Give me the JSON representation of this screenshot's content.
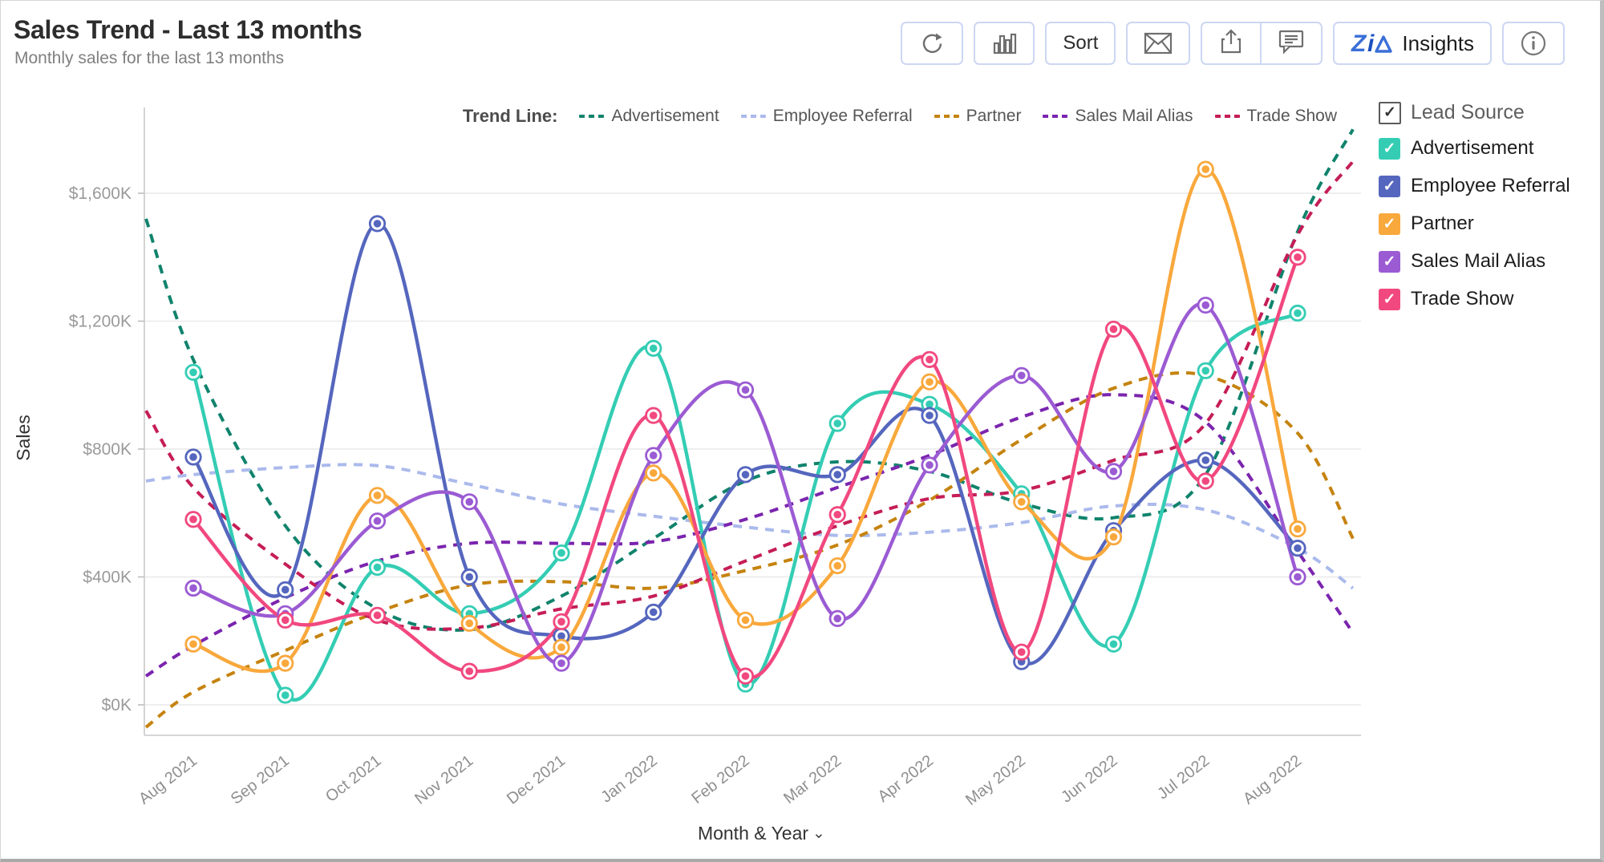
{
  "header": {
    "title": "Sales Trend - Last 13 months",
    "subtitle": "Monthly sales for the last 13 months"
  },
  "toolbar": {
    "sort_label": "Sort",
    "zia_label": "Zia",
    "insights_label": "Insights",
    "icons": [
      "refresh-icon",
      "column-chart-icon",
      "mail-icon",
      "share-icon",
      "comment-icon",
      "zia-logo-icon",
      "info-icon"
    ]
  },
  "trend_legend": {
    "label": "Trend Line:",
    "items": [
      {
        "name": "Advertisement",
        "color": "#10836C"
      },
      {
        "name": "Employee Referral",
        "color": "#ABBAEC"
      },
      {
        "name": "Partner",
        "color": "#C5830F"
      },
      {
        "name": "Sales Mail Alias",
        "color": "#7B24AE"
      },
      {
        "name": "Trade Show",
        "color": "#C51D57"
      }
    ]
  },
  "lead_source_legend": {
    "title": "Lead Source",
    "checked": true,
    "items": [
      {
        "label": "Advertisement",
        "color": "#34CDB4",
        "checked": true
      },
      {
        "label": "Employee Referral",
        "color": "#5566BE",
        "checked": true
      },
      {
        "label": "Partner",
        "color": "#F9A83C",
        "checked": true
      },
      {
        "label": "Sales Mail Alias",
        "color": "#9B5BD3",
        "checked": true
      },
      {
        "label": "Trade Show",
        "color": "#F1487F",
        "checked": true
      }
    ]
  },
  "chart_data": {
    "type": "line",
    "title": "Sales Trend - Last 13 months",
    "xlabel": "Month & Year",
    "ylabel": "Sales",
    "unit": "$K",
    "ylim": [
      0,
      1600
    ],
    "ytick_step": 400,
    "ytick_labels": [
      "$0K",
      "$400K",
      "$800K",
      "$1,200K",
      "$1,600K"
    ],
    "grid": true,
    "legend_position": "right",
    "categories": [
      "Aug 2021",
      "Sep 2021",
      "Oct 2021",
      "Nov 2021",
      "Dec 2021",
      "Jan 2022",
      "Feb 2022",
      "Mar 2022",
      "Apr 2022",
      "May 2022",
      "Jun 2022",
      "Jul 2022",
      "Aug 2022"
    ],
    "series": [
      {
        "name": "Advertisement",
        "color": "#34CDB4",
        "values": [
          1040,
          30,
          430,
          285,
          475,
          1115,
          65,
          880,
          940,
          660,
          190,
          1045,
          1225
        ]
      },
      {
        "name": "Employee Referral",
        "color": "#5566BE",
        "values": [
          775,
          360,
          1505,
          400,
          215,
          290,
          720,
          720,
          905,
          135,
          545,
          765,
          490
        ]
      },
      {
        "name": "Partner",
        "color": "#F9A83C",
        "values": [
          190,
          130,
          655,
          255,
          180,
          725,
          265,
          435,
          1010,
          635,
          525,
          1675,
          550
        ]
      },
      {
        "name": "Sales Mail Alias",
        "color": "#9B5BD3",
        "values": [
          365,
          285,
          575,
          635,
          130,
          780,
          985,
          270,
          750,
          1030,
          730,
          1250,
          400
        ]
      },
      {
        "name": "Trade Show",
        "color": "#F1487F",
        "values": [
          580,
          265,
          280,
          105,
          260,
          905,
          90,
          595,
          1080,
          165,
          1175,
          700,
          1400
        ]
      }
    ],
    "trend_lines_note": "polynomial trend curves; 15 samples = left plot edge, the 13 months, right plot edge",
    "trend_lines": [
      {
        "name": "Advertisement",
        "color": "#10836C",
        "values": [
          1520,
          1080,
          560,
          300,
          235,
          340,
          520,
          700,
          760,
          730,
          630,
          585,
          720,
          1480,
          1800
        ]
      },
      {
        "name": "Employee Referral",
        "color": "#ABBAEC",
        "values": [
          700,
          720,
          742,
          748,
          690,
          628,
          590,
          556,
          530,
          540,
          570,
          622,
          610,
          490,
          365
        ]
      },
      {
        "name": "Partner",
        "color": "#C5830F",
        "values": [
          -70,
          40,
          170,
          290,
          375,
          385,
          365,
          420,
          500,
          640,
          830,
          990,
          1030,
          850,
          520
        ]
      },
      {
        "name": "Sales Mail Alias",
        "color": "#7B24AE",
        "values": [
          90,
          185,
          335,
          450,
          505,
          505,
          510,
          580,
          680,
          780,
          900,
          970,
          885,
          480,
          225
        ]
      },
      {
        "name": "Trade Show",
        "color": "#C51D57",
        "values": [
          920,
          680,
          440,
          265,
          240,
          300,
          340,
          450,
          560,
          645,
          670,
          765,
          880,
          1470,
          1700
        ]
      }
    ]
  }
}
